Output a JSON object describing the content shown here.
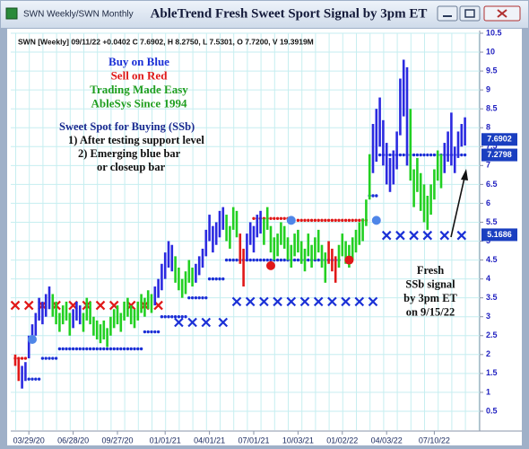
{
  "chart_data": {
    "type": "ohlc",
    "window_title": "SWN Weekly/SWN Monthly",
    "title": "AbleTrend Fresh Sweet Sport Signal by 3pm ET",
    "header": "SWN [Weekly] 09/11/22 +0.0402 C 7.6902, H 8.2750, L 7.5301, O 7.7200, V 19.3919M",
    "legend_text": [
      "Buy on Blue",
      "Sell on Red",
      "Trading Made Easy",
      "AbleSys Since 1994"
    ],
    "legend_colors": [
      "#1a2fd6",
      "#e01818",
      "#1f9e1f",
      "#1f9e1f"
    ],
    "ssb_text": [
      "Sweet Spot for Buying (SSb)",
      "1) After testing support level",
      "2) Emerging blue bar",
      "or closeup bar"
    ],
    "annotation": [
      "Fresh",
      "SSb signal",
      "by 3pm ET",
      "on 9/15/22"
    ],
    "categories": [
      null,
      null,
      null,
      null,
      "03/29/20",
      null,
      null,
      null,
      null,
      null,
      null,
      null,
      null,
      null,
      null,
      null,
      null,
      "06/28/20",
      null,
      null,
      null,
      null,
      null,
      null,
      null,
      null,
      null,
      null,
      null,
      null,
      "09/27/20",
      null,
      null,
      null,
      null,
      null,
      null,
      null,
      null,
      null,
      null,
      null,
      null,
      null,
      "01/01/21",
      null,
      null,
      null,
      null,
      null,
      null,
      null,
      null,
      null,
      null,
      null,
      null,
      "04/01/21",
      null,
      null,
      null,
      null,
      null,
      null,
      null,
      null,
      null,
      null,
      null,
      null,
      "07/01/21",
      null,
      null,
      null,
      null,
      null,
      null,
      null,
      null,
      null,
      null,
      null,
      null,
      "10/03/21",
      null,
      null,
      null,
      null,
      null,
      null,
      null,
      null,
      null,
      null,
      null,
      null,
      "01/02/22",
      null,
      null,
      null,
      null,
      null,
      null,
      null,
      null,
      null,
      null,
      null,
      null,
      "04/03/22",
      null,
      null,
      null,
      null,
      null,
      null,
      null,
      null,
      null,
      null,
      null,
      null,
      null,
      "07/10/22",
      null,
      null,
      null,
      null,
      null,
      null,
      null,
      null,
      null
    ],
    "high": [
      2.0,
      1.9,
      1.7,
      1.8,
      2.5,
      2.8,
      3.1,
      3.5,
      3.4,
      3.6,
      3.8,
      3.6,
      3.4,
      3.1,
      3.3,
      3.4,
      3.1,
      3.2,
      3.4,
      3.3,
      3.1,
      3.5,
      3.4,
      3.0,
      2.9,
      2.8,
      2.9,
      2.7,
      3.0,
      3.2,
      3.3,
      3.1,
      3.4,
      3.5,
      3.3,
      3.2,
      3.4,
      3.6,
      3.5,
      3.7,
      3.6,
      3.8,
      4.0,
      4.4,
      4.7,
      5.0,
      4.9,
      4.6,
      4.3,
      4.0,
      4.2,
      4.5,
      4.3,
      4.4,
      4.6,
      4.8,
      5.3,
      5.7,
      5.4,
      5.5,
      5.8,
      5.9,
      5.7,
      5.4,
      5.9,
      5.8,
      5.2,
      4.8,
      5.2,
      5.5,
      5.4,
      5.7,
      5.8,
      5.6,
      5.9,
      5.4,
      5.1,
      5.2,
      5.5,
      5.4,
      5.1,
      4.9,
      5.2,
      5.3,
      5.0,
      4.8,
      5.2,
      4.9,
      5.1,
      5.3,
      4.9,
      4.7,
      5.0,
      4.8,
      4.6,
      4.9,
      5.2,
      5.0,
      4.9,
      5.1,
      5.3,
      5.5,
      5.6,
      6.1,
      7.3,
      8.1,
      8.5,
      8.8,
      8.2,
      7.6,
      7.2,
      7.4,
      7.9,
      9.3,
      9.8,
      9.6,
      8.5,
      6.9,
      7.2,
      6.8,
      6.5,
      6.2,
      6.5,
      6.9,
      7.4,
      7.3,
      7.6,
      7.9,
      8.4,
      7.5,
      7.9,
      8.1,
      8.275
    ],
    "low": [
      1.7,
      1.3,
      1.1,
      1.3,
      1.9,
      2.3,
      2.5,
      2.9,
      2.8,
      3.0,
      3.2,
      3.0,
      2.8,
      2.6,
      2.8,
      2.9,
      2.5,
      2.7,
      2.9,
      2.8,
      2.6,
      2.9,
      2.8,
      2.5,
      2.4,
      2.3,
      2.4,
      2.2,
      2.5,
      2.7,
      2.8,
      2.6,
      2.9,
      3.0,
      2.8,
      2.7,
      2.9,
      3.1,
      3.0,
      3.2,
      3.1,
      3.3,
      3.5,
      3.7,
      4.0,
      4.3,
      4.2,
      3.9,
      3.7,
      3.5,
      3.6,
      3.9,
      3.8,
      3.9,
      4.1,
      4.3,
      4.6,
      5.0,
      4.7,
      4.9,
      5.1,
      5.3,
      5.0,
      4.8,
      5.3,
      5.1,
      4.4,
      3.8,
      4.5,
      4.9,
      4.7,
      5.1,
      5.2,
      4.9,
      5.3,
      4.7,
      4.5,
      4.6,
      4.9,
      4.8,
      4.5,
      4.3,
      4.6,
      4.7,
      4.4,
      4.2,
      4.6,
      4.3,
      4.5,
      4.7,
      4.3,
      3.9,
      4.4,
      4.2,
      3.9,
      4.3,
      4.6,
      4.4,
      4.3,
      4.5,
      4.7,
      4.9,
      5.0,
      5.4,
      6.1,
      6.8,
      7.1,
      7.5,
      7.0,
      6.5,
      6.3,
      6.5,
      6.9,
      7.8,
      8.3,
      7.0,
      6.6,
      5.9,
      6.3,
      5.8,
      5.5,
      5.3,
      5.7,
      6.1,
      6.6,
      6.4,
      6.8,
      7.1,
      7.0,
      6.8,
      7.2,
      7.5,
      7.53
    ],
    "bar_color_runs": [
      {
        "from": 0,
        "to": 1,
        "color": "#e01818"
      },
      {
        "from": 2,
        "to": 10,
        "color": "#2a2ae0"
      },
      {
        "from": 11,
        "to": 16,
        "color": "#22d022"
      },
      {
        "from": 17,
        "to": 19,
        "color": "#2a2ae0"
      },
      {
        "from": 20,
        "to": 40,
        "color": "#22d022"
      },
      {
        "from": 41,
        "to": 46,
        "color": "#2a2ae0"
      },
      {
        "from": 47,
        "to": 52,
        "color": "#22d022"
      },
      {
        "from": 53,
        "to": 61,
        "color": "#2a2ae0"
      },
      {
        "from": 62,
        "to": 65,
        "color": "#22d022"
      },
      {
        "from": 66,
        "to": 67,
        "color": "#e01818"
      },
      {
        "from": 68,
        "to": 72,
        "color": "#2a2ae0"
      },
      {
        "from": 73,
        "to": 91,
        "color": "#22d022"
      },
      {
        "from": 92,
        "to": 94,
        "color": "#e01818"
      },
      {
        "from": 95,
        "to": 104,
        "color": "#22d022"
      },
      {
        "from": 105,
        "to": 115,
        "color": "#2a2ae0"
      },
      {
        "from": 116,
        "to": 125,
        "color": "#22d022"
      },
      {
        "from": 126,
        "to": 132,
        "color": "#2a2ae0"
      }
    ],
    "dot_levels": [
      {
        "from": 0,
        "to": 3,
        "value": 1.9,
        "color": "#e01818"
      },
      {
        "from": 4,
        "to": 7,
        "value": 1.35,
        "color": "#1a2fd6"
      },
      {
        "from": 8,
        "to": 12,
        "value": 1.9,
        "color": "#1a2fd6"
      },
      {
        "from": 13,
        "to": 37,
        "value": 2.15,
        "color": "#1a2fd6"
      },
      {
        "from": 38,
        "to": 42,
        "value": 2.6,
        "color": "#1a2fd6"
      },
      {
        "from": 43,
        "to": 50,
        "value": 3.0,
        "color": "#1a2fd6"
      },
      {
        "from": 51,
        "to": 56,
        "value": 3.5,
        "color": "#1a2fd6"
      },
      {
        "from": 57,
        "to": 61,
        "value": 4.0,
        "color": "#1a2fd6"
      },
      {
        "from": 62,
        "to": 95,
        "value": 4.5,
        "color": "#1a2fd6"
      },
      {
        "from": 70,
        "to": 80,
        "value": 5.6,
        "color": "#e01818"
      },
      {
        "from": 83,
        "to": 103,
        "value": 5.55,
        "color": "#e01818"
      },
      {
        "from": 104,
        "to": 106,
        "value": 6.2,
        "color": "#1a2fd6"
      },
      {
        "from": 107,
        "to": 132,
        "value": 7.28,
        "color": "#1a2fd6"
      }
    ],
    "x_markers": [
      {
        "value": 3.3,
        "color": "#e01818",
        "indices": [
          0,
          4,
          8,
          12,
          17,
          21,
          25,
          29,
          34,
          38,
          42
        ]
      },
      {
        "value": 2.85,
        "color": "#1a2fd6",
        "indices": [
          48,
          52,
          56,
          61
        ]
      },
      {
        "value": 3.4,
        "color": "#1a2fd6",
        "indices": [
          65,
          69,
          73,
          77,
          81,
          85,
          89,
          93,
          97,
          101,
          105
        ]
      },
      {
        "value": 5.15,
        "color": "#1a2fd6",
        "indices": [
          109,
          113,
          117,
          121,
          126,
          131
        ]
      }
    ],
    "signals": [
      {
        "index": 5,
        "value": 2.4,
        "color": "#4f86e8"
      },
      {
        "index": 75,
        "value": 4.35,
        "color": "#e01818"
      },
      {
        "index": 81,
        "value": 5.55,
        "color": "#4f86e8"
      },
      {
        "index": 98,
        "value": 4.5,
        "color": "#e01818"
      },
      {
        "index": 106,
        "value": 5.55,
        "color": "#4f86e8"
      }
    ],
    "price_labels": [
      7.6902,
      7.2798,
      5.1686
    ],
    "ylim": [
      0,
      10.5
    ],
    "yticks": [
      0.5,
      1,
      1.5,
      2,
      2.5,
      3,
      3.5,
      4,
      4.5,
      5,
      5.5,
      6,
      6.5,
      7,
      7.5,
      8,
      8.5,
      9,
      9.5,
      10,
      10.5
    ],
    "grid": true
  }
}
